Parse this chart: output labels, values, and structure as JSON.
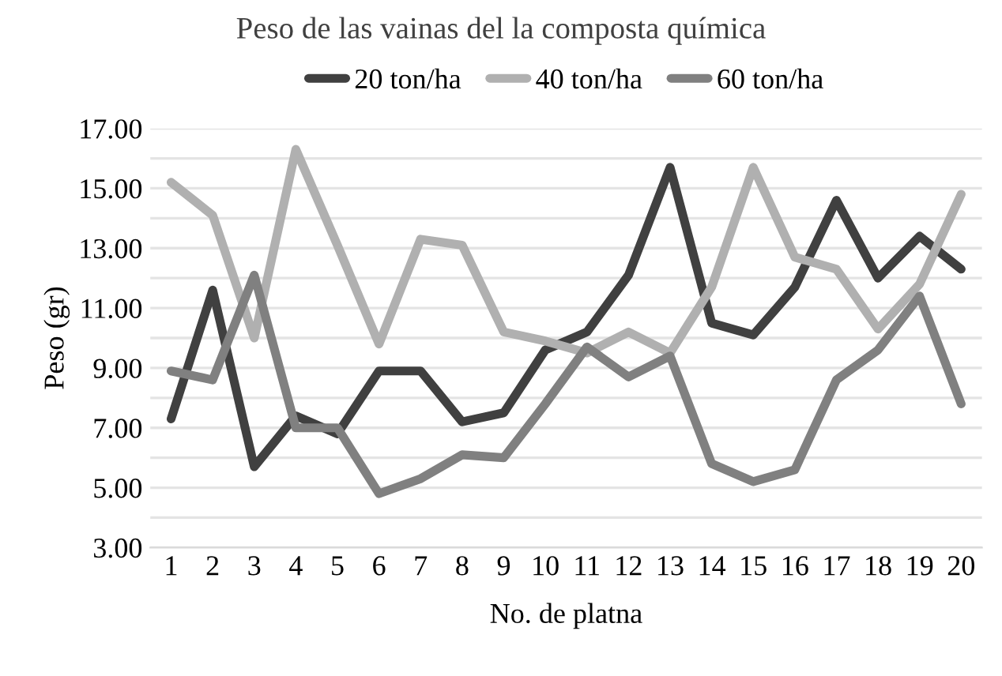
{
  "chart_data": {
    "type": "line",
    "title": "Peso de las vainas del la composta química",
    "xlabel": "No. de platna",
    "ylabel": "Peso (gr)",
    "categories": [
      "1",
      "2",
      "3",
      "4",
      "5",
      "6",
      "7",
      "8",
      "9",
      "10",
      "11",
      "12",
      "13",
      "14",
      "15",
      "16",
      "17",
      "18",
      "19",
      "20"
    ],
    "series": [
      {
        "name": "20 ton/ha",
        "color": "#404040",
        "values": [
          7.3,
          11.6,
          5.7,
          7.4,
          6.8,
          8.9,
          8.9,
          7.2,
          7.5,
          9.6,
          10.2,
          12.1,
          15.7,
          10.5,
          10.1,
          11.7,
          14.6,
          12.0,
          13.4,
          12.3
        ]
      },
      {
        "name": "40 ton/ha",
        "color": "#b0b0b0",
        "values": [
          15.2,
          14.1,
          10.0,
          16.3,
          13.1,
          9.8,
          13.3,
          13.1,
          10.2,
          9.9,
          9.5,
          10.2,
          9.5,
          11.7,
          15.7,
          12.7,
          12.3,
          10.3,
          11.8,
          14.8
        ]
      },
      {
        "name": "60 ton/ha",
        "color": "#808080",
        "values": [
          8.9,
          8.6,
          12.1,
          7.0,
          7.0,
          4.8,
          5.3,
          6.1,
          6.0,
          7.8,
          9.7,
          8.7,
          9.4,
          5.8,
          5.2,
          5.6,
          8.6,
          9.6,
          11.4,
          7.8
        ]
      }
    ],
    "ylim": [
      3,
      17
    ],
    "yticks": [
      {
        "value": 3,
        "label": "3.00"
      },
      {
        "value": 4,
        "label": null
      },
      {
        "value": 5,
        "label": "5.00"
      },
      {
        "value": 6,
        "label": null
      },
      {
        "value": 7,
        "label": "7.00"
      },
      {
        "value": 8,
        "label": null
      },
      {
        "value": 9,
        "label": "9.00"
      },
      {
        "value": 10,
        "label": null
      },
      {
        "value": 11,
        "label": "11.00"
      },
      {
        "value": 12,
        "label": null
      },
      {
        "value": 13,
        "label": "13.00"
      },
      {
        "value": 14,
        "label": null
      },
      {
        "value": 15,
        "label": "15.00"
      },
      {
        "value": 16,
        "label": null
      },
      {
        "value": 17,
        "label": "17.00"
      }
    ],
    "grid": "y",
    "legend": "top",
    "marker": "none",
    "line_style": "solid"
  }
}
